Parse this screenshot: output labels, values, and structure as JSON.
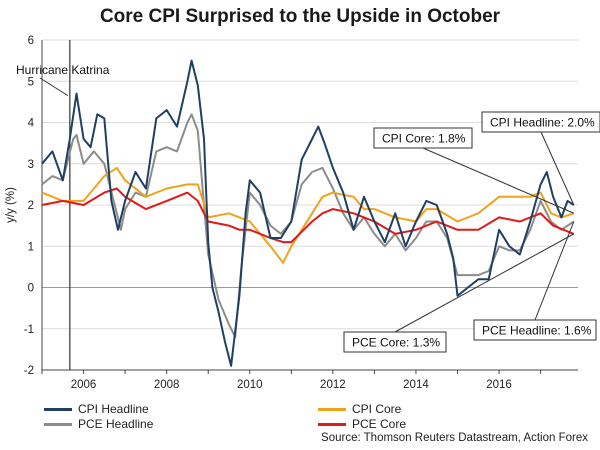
{
  "colors": {
    "cpi_headline": "#1f3f63",
    "pce_headline": "#8c8c8c",
    "cpi_core": "#f0a21c",
    "pce_core": "#e01919",
    "grid": "#dcdcdc",
    "axis": "#444444"
  },
  "chart_data": {
    "type": "line",
    "title": "Core CPI Surprised to the Upside in October",
    "ylabel": "y/y (%)",
    "xlabel": "",
    "xlim": [
      2005.0,
      2017.9
    ],
    "ylim": [
      -2,
      6
    ],
    "yticks": [
      -2,
      -1,
      0,
      1,
      2,
      3,
      4,
      5,
      6
    ],
    "xticks": [
      2006,
      2008,
      2010,
      2012,
      2014,
      2016
    ],
    "series": [
      {
        "name": "CPI Headline",
        "key": "cpi_headline",
        "x": [
          2005.0,
          2005.25,
          2005.5,
          2005.67,
          2005.83,
          2006.0,
          2006.17,
          2006.33,
          2006.5,
          2006.67,
          2006.83,
          2007.0,
          2007.25,
          2007.5,
          2007.75,
          2008.0,
          2008.25,
          2008.5,
          2008.6,
          2008.75,
          2008.9,
          2009.0,
          2009.1,
          2009.25,
          2009.4,
          2009.55,
          2009.75,
          2009.9,
          2010.0,
          2010.25,
          2010.5,
          2010.75,
          2011.0,
          2011.25,
          2011.5,
          2011.65,
          2011.8,
          2012.0,
          2012.25,
          2012.5,
          2012.75,
          2013.0,
          2013.25,
          2013.5,
          2013.75,
          2014.0,
          2014.25,
          2014.5,
          2014.75,
          2014.9,
          2015.0,
          2015.25,
          2015.5,
          2015.75,
          2016.0,
          2016.25,
          2016.5,
          2016.75,
          2017.0,
          2017.15,
          2017.3,
          2017.5,
          2017.65,
          2017.8
        ],
        "values": [
          3.0,
          3.3,
          2.6,
          3.6,
          4.7,
          3.6,
          3.4,
          4.2,
          4.1,
          2.1,
          1.4,
          2.1,
          2.8,
          2.4,
          4.1,
          4.3,
          3.9,
          5.0,
          5.5,
          4.9,
          3.6,
          1.1,
          0.0,
          -0.6,
          -1.3,
          -1.9,
          -0.2,
          1.8,
          2.6,
          2.3,
          1.2,
          1.2,
          1.6,
          3.1,
          3.6,
          3.9,
          3.5,
          2.9,
          2.3,
          1.4,
          2.2,
          1.6,
          1.1,
          1.8,
          1.0,
          1.6,
          2.1,
          2.0,
          1.3,
          0.7,
          -0.2,
          0.0,
          0.2,
          0.2,
          1.4,
          1.0,
          0.8,
          1.6,
          2.5,
          2.8,
          2.2,
          1.7,
          2.1,
          2.0
        ]
      },
      {
        "name": "PCE Headline",
        "key": "pce_headline",
        "x": [
          2005.0,
          2005.25,
          2005.5,
          2005.75,
          2005.83,
          2006.0,
          2006.25,
          2006.5,
          2006.75,
          2006.9,
          2007.0,
          2007.25,
          2007.5,
          2007.75,
          2008.0,
          2008.25,
          2008.5,
          2008.6,
          2008.75,
          2008.9,
          2009.0,
          2009.25,
          2009.5,
          2009.65,
          2009.8,
          2010.0,
          2010.25,
          2010.5,
          2010.75,
          2011.0,
          2011.25,
          2011.5,
          2011.75,
          2012.0,
          2012.25,
          2012.5,
          2012.75,
          2013.0,
          2013.25,
          2013.5,
          2013.75,
          2014.0,
          2014.25,
          2014.5,
          2014.75,
          2015.0,
          2015.25,
          2015.5,
          2015.75,
          2016.0,
          2016.25,
          2016.5,
          2016.75,
          2017.0,
          2017.25,
          2017.5,
          2017.8
        ],
        "values": [
          2.5,
          2.7,
          2.6,
          3.6,
          3.7,
          3.0,
          3.3,
          3.0,
          2.0,
          1.4,
          1.9,
          2.3,
          2.2,
          3.3,
          3.4,
          3.3,
          4.0,
          4.2,
          3.8,
          2.0,
          0.8,
          -0.3,
          -0.9,
          -1.2,
          0.5,
          2.3,
          2.0,
          1.5,
          1.3,
          1.6,
          2.5,
          2.8,
          2.9,
          2.4,
          1.8,
          1.4,
          1.7,
          1.3,
          1.0,
          1.3,
          0.9,
          1.2,
          1.6,
          1.6,
          1.2,
          0.3,
          0.3,
          0.3,
          0.4,
          1.0,
          0.9,
          0.9,
          1.4,
          2.1,
          1.6,
          1.4,
          1.6
        ]
      },
      {
        "name": "CPI Core",
        "key": "cpi_core",
        "x": [
          2005.0,
          2005.5,
          2006.0,
          2006.5,
          2006.8,
          2007.0,
          2007.5,
          2008.0,
          2008.5,
          2008.75,
          2009.0,
          2009.5,
          2009.75,
          2010.0,
          2010.5,
          2010.8,
          2011.0,
          2011.5,
          2011.75,
          2012.0,
          2012.5,
          2012.75,
          2013.0,
          2013.5,
          2014.0,
          2014.25,
          2014.5,
          2015.0,
          2015.5,
          2016.0,
          2016.5,
          2016.75,
          2017.0,
          2017.25,
          2017.5,
          2017.8
        ],
        "values": [
          2.3,
          2.1,
          2.1,
          2.7,
          2.9,
          2.6,
          2.2,
          2.4,
          2.5,
          2.5,
          1.7,
          1.8,
          1.7,
          1.6,
          1.0,
          0.6,
          1.0,
          1.8,
          2.2,
          2.3,
          2.2,
          1.9,
          1.9,
          1.7,
          1.6,
          1.9,
          1.9,
          1.6,
          1.8,
          2.2,
          2.2,
          2.2,
          2.3,
          1.8,
          1.7,
          1.8
        ]
      },
      {
        "name": "PCE Core",
        "key": "pce_core",
        "x": [
          2005.0,
          2005.5,
          2006.0,
          2006.5,
          2006.8,
          2007.0,
          2007.5,
          2008.0,
          2008.5,
          2008.75,
          2009.0,
          2009.5,
          2009.75,
          2010.0,
          2010.5,
          2010.8,
          2011.0,
          2011.5,
          2011.75,
          2012.0,
          2012.5,
          2012.75,
          2013.0,
          2013.5,
          2014.0,
          2014.5,
          2015.0,
          2015.5,
          2016.0,
          2016.5,
          2016.75,
          2017.0,
          2017.3,
          2017.8
        ],
        "values": [
          2.0,
          2.1,
          2.0,
          2.3,
          2.4,
          2.2,
          1.9,
          2.1,
          2.3,
          2.1,
          1.6,
          1.5,
          1.4,
          1.4,
          1.2,
          1.1,
          1.1,
          1.6,
          1.8,
          1.9,
          1.8,
          1.7,
          1.6,
          1.3,
          1.4,
          1.6,
          1.4,
          1.4,
          1.7,
          1.6,
          1.7,
          1.8,
          1.5,
          1.3
        ]
      }
    ],
    "annotations": [
      {
        "key": "hurricane",
        "text": "Hurricane Katrina",
        "x": 2005.67,
        "y": 4.7
      },
      {
        "key": "cpi_headline_callout",
        "text": "CPI Headline: 2.0%",
        "x": 2017.8,
        "y": 2.0
      },
      {
        "key": "cpi_core_callout",
        "text": "CPI Core: 1.8%",
        "x": 2017.8,
        "y": 1.8
      },
      {
        "key": "pce_core_callout",
        "text": "PCE Core: 1.3%",
        "x": 2017.8,
        "y": 1.3
      },
      {
        "key": "pce_headline_callout",
        "text": "PCE Headline: 1.6%",
        "x": 2017.8,
        "y": 1.6
      }
    ],
    "vline_x": 2005.67
  },
  "legend": {
    "left": [
      "CPI Headline",
      "PCE Headline"
    ],
    "right": [
      "CPI Core",
      "PCE Core"
    ]
  },
  "source": "Source: Thomson Reuters Datastream, Action Forex"
}
